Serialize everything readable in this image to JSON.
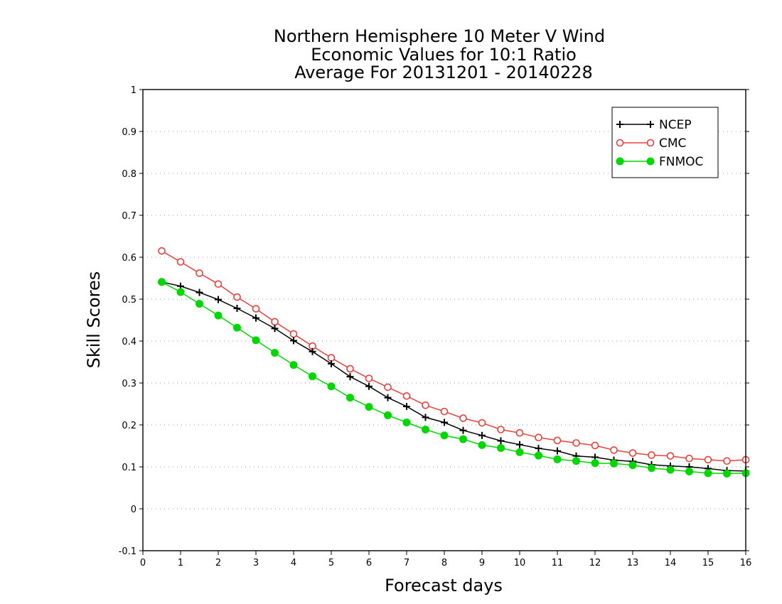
{
  "chart_data": {
    "type": "line",
    "title_lines": [
      "Northern Hemisphere 10 Meter V Wind",
      "Economic Values for 10:1 Ratio",
      "Average For 20131201 - 20140228"
    ],
    "xlabel": "Forecast days",
    "ylabel": "Skill Scores",
    "xlim": [
      0,
      16
    ],
    "ylim": [
      -0.1,
      1
    ],
    "x_ticks": [
      0,
      1,
      2,
      3,
      4,
      5,
      6,
      7,
      8,
      9,
      10,
      11,
      12,
      13,
      14,
      15,
      16
    ],
    "y_ticks": [
      -0.1,
      0,
      0.1,
      0.2,
      0.3,
      0.4,
      0.5,
      0.6,
      0.7,
      0.8,
      0.9,
      1
    ],
    "y_tick_labels": [
      "-0.1",
      "0",
      "0.1",
      "0.2",
      "0.3",
      "0.4",
      "0.5",
      "0.6",
      "0.7",
      "0.8",
      "0.9",
      "1"
    ],
    "grid": "horizontal dotted",
    "legend_position": "top-right",
    "x": [
      0.5,
      1,
      1.5,
      2,
      2.5,
      3,
      3.5,
      4,
      4.5,
      5,
      5.5,
      6,
      6.5,
      7,
      7.5,
      8,
      8.5,
      9,
      9.5,
      10,
      10.5,
      11,
      11.5,
      12,
      12.5,
      13,
      13.5,
      14,
      14.5,
      15,
      15.5,
      16
    ],
    "series": [
      {
        "name": "NCEP",
        "color": "#000000",
        "marker": "plus",
        "values": [
          0.541,
          0.531,
          0.516,
          0.499,
          0.478,
          0.455,
          0.43,
          0.401,
          0.375,
          0.346,
          0.315,
          0.292,
          0.265,
          0.244,
          0.218,
          0.206,
          0.187,
          0.175,
          0.162,
          0.153,
          0.144,
          0.138,
          0.126,
          0.123,
          0.116,
          0.113,
          0.105,
          0.102,
          0.1,
          0.096,
          0.091,
          0.09
        ]
      },
      {
        "name": "CMC",
        "color": "#e8403a",
        "marker": "open-circle",
        "values": [
          0.615,
          0.589,
          0.562,
          0.536,
          0.505,
          0.477,
          0.446,
          0.417,
          0.388,
          0.36,
          0.334,
          0.311,
          0.29,
          0.269,
          0.247,
          0.232,
          0.216,
          0.205,
          0.189,
          0.181,
          0.17,
          0.163,
          0.157,
          0.151,
          0.14,
          0.133,
          0.128,
          0.126,
          0.12,
          0.117,
          0.114,
          0.117
        ]
      },
      {
        "name": "FNMOC",
        "color": "#00d600",
        "marker": "filled-circle",
        "values": [
          0.541,
          0.517,
          0.489,
          0.461,
          0.432,
          0.402,
          0.372,
          0.343,
          0.316,
          0.292,
          0.265,
          0.243,
          0.223,
          0.206,
          0.189,
          0.175,
          0.166,
          0.152,
          0.145,
          0.135,
          0.127,
          0.118,
          0.114,
          0.109,
          0.108,
          0.104,
          0.097,
          0.093,
          0.089,
          0.085,
          0.084,
          0.085
        ]
      }
    ]
  }
}
